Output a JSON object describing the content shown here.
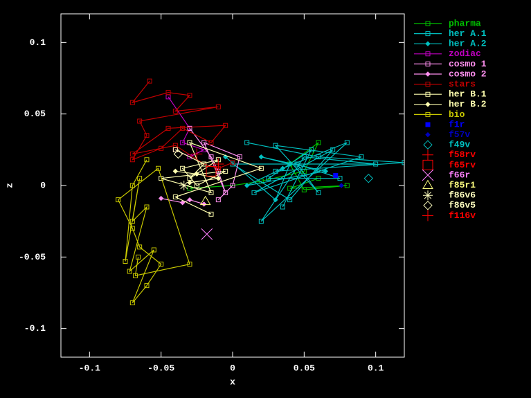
{
  "chart_data": {
    "type": "line",
    "xlabel": "x",
    "ylabel": "z",
    "xlim": [
      -0.12,
      0.12
    ],
    "ylim": [
      -0.12,
      0.12
    ],
    "xticks": [
      -0.1,
      -0.05,
      0,
      0.05,
      0.1
    ],
    "yticks": [
      0.1,
      0.05,
      0,
      -0.05,
      -0.1
    ],
    "legend": "right",
    "series": [
      {
        "name": "pharma",
        "color": "#00c000",
        "marker": "square",
        "lines": true,
        "x": [
          -0.03,
          0.0,
          0.02,
          0.05,
          0.06,
          0.04,
          0.05,
          0.08,
          0.04,
          0.06
        ],
        "values": [
          -0.002,
          0.0,
          0.003,
          0.01,
          0.03,
          0.015,
          -0.003,
          0.0,
          -0.002,
          0.005
        ]
      },
      {
        "name": "her A.1",
        "color": "#00c0c0",
        "marker": "square",
        "lines": true,
        "x": [
          0.01,
          0.06,
          0.12,
          0.03,
          0.08,
          0.02,
          0.05,
          0.1,
          0.0,
          0.04,
          0.07,
          0.015,
          0.09,
          0.03,
          0.06,
          0.045,
          0.075,
          0.025,
          0.055,
          0.035
        ],
        "values": [
          0.03,
          0.02,
          0.016,
          0.01,
          0.03,
          -0.025,
          0.02,
          0.015,
          0.015,
          -0.01,
          0.025,
          -0.005,
          0.02,
          0.028,
          -0.005,
          0.015,
          0.005,
          0.005,
          0.025,
          -0.015
        ]
      },
      {
        "name": "her A.2",
        "color": "#00c0c0",
        "marker": "diamond",
        "lines": true,
        "x": [
          -0.005,
          0.03,
          0.04,
          0.02,
          0.065,
          0.01,
          0.035
        ],
        "values": [
          0.02,
          -0.01,
          0.015,
          0.02,
          0.01,
          0.0,
          0.012
        ]
      },
      {
        "name": "zodiac",
        "color": "#c000c0",
        "marker": "square",
        "lines": true,
        "x": [
          -0.045,
          -0.03,
          -0.035,
          -0.02,
          -0.03,
          -0.04
        ],
        "values": [
          0.062,
          0.04,
          0.03,
          0.025,
          0.02,
          0.025
        ]
      },
      {
        "name": "cosmo 1",
        "color": "#ff90f0",
        "marker": "square",
        "lines": true,
        "x": [
          -0.03,
          -0.015,
          -0.01,
          -0.005,
          -0.02,
          0.005,
          0.0,
          -0.01
        ],
        "values": [
          0.04,
          0.02,
          0.01,
          -0.005,
          0.03,
          0.02,
          0.0,
          -0.01
        ]
      },
      {
        "name": "cosmo 2",
        "color": "#ff90f0",
        "marker": "diamond",
        "lines": true,
        "x": [
          -0.05,
          -0.035,
          -0.03,
          -0.02
        ],
        "values": [
          -0.009,
          -0.012,
          -0.01,
          -0.013
        ]
      },
      {
        "name": "stars",
        "color": "#c00000",
        "marker": "square",
        "lines": true,
        "x": [
          -0.058,
          -0.07,
          -0.045,
          -0.03,
          -0.04,
          -0.01,
          -0.065,
          -0.06,
          -0.07,
          -0.05,
          -0.035,
          -0.015,
          -0.005,
          -0.045,
          -0.07,
          -0.04,
          -0.02,
          -0.01,
          0.0
        ],
        "values": [
          0.073,
          0.058,
          0.065,
          0.063,
          0.052,
          0.055,
          0.045,
          0.035,
          0.018,
          0.026,
          0.04,
          0.03,
          0.042,
          0.04,
          0.022,
          0.028,
          0.015,
          0.012,
          0.016
        ]
      },
      {
        "name": "her B.1",
        "color": "#ffffb0",
        "marker": "square",
        "lines": true,
        "x": [
          -0.04,
          -0.02,
          -0.03,
          -0.01,
          -0.035,
          -0.025,
          -0.005,
          -0.05,
          -0.015,
          -0.03,
          0.02,
          -0.04,
          -0.015
        ],
        "values": [
          0.025,
          0.015,
          0.005,
          0.018,
          0.012,
          0.0,
          0.01,
          0.005,
          -0.005,
          0.03,
          0.012,
          -0.008,
          -0.02
        ]
      },
      {
        "name": "her B.2",
        "color": "#ffffb0",
        "marker": "diamond",
        "lines": true,
        "x": [
          -0.04,
          -0.025,
          -0.01,
          -0.03
        ],
        "values": [
          0.01,
          0.008,
          0.005,
          0.002
        ]
      },
      {
        "name": "bio",
        "color": "#c8c800",
        "marker": "square",
        "lines": true,
        "x": [
          -0.06,
          -0.07,
          -0.075,
          -0.065,
          -0.07,
          -0.06,
          -0.072,
          -0.055,
          -0.07,
          -0.06,
          -0.05,
          -0.065,
          -0.07,
          -0.08,
          -0.052,
          -0.03,
          -0.068,
          -0.066
        ],
        "values": [
          0.018,
          0.0,
          -0.053,
          0.005,
          -0.025,
          -0.015,
          -0.06,
          -0.045,
          -0.082,
          -0.07,
          -0.055,
          -0.043,
          -0.03,
          -0.01,
          0.012,
          -0.055,
          -0.063,
          -0.05
        ]
      },
      {
        "name": "f1r",
        "color": "#0000ff",
        "marker": "box",
        "lines": false,
        "x": [
          0.072
        ],
        "values": [
          0.007
        ]
      },
      {
        "name": "f57v",
        "color": "#0000c0",
        "marker": "diamond",
        "lines": false,
        "x": [
          0.076
        ],
        "values": [
          0.0
        ]
      },
      {
        "name": "f49v",
        "color": "#00c0c0",
        "marker": "bigdiamond",
        "lines": false,
        "x": [
          0.095
        ],
        "values": [
          0.005
        ]
      },
      {
        "name": "f58rv",
        "color": "#ff0000",
        "marker": "plus",
        "lines": false,
        "x": [
          -0.025
        ],
        "values": [
          0.022
        ]
      },
      {
        "name": "f65rv",
        "color": "#ff0000",
        "marker": "bigbox",
        "lines": false,
        "x": [
          -0.015
        ],
        "values": [
          0.01
        ]
      },
      {
        "name": "f66r",
        "color": "#ff80ff",
        "marker": "cross",
        "lines": false,
        "x": [
          -0.018
        ],
        "values": [
          -0.034
        ]
      },
      {
        "name": "f85r1",
        "color": "#ffff80",
        "marker": "triangle",
        "lines": false,
        "x": [
          -0.019
        ],
        "values": [
          -0.011
        ]
      },
      {
        "name": "f86v6",
        "color": "#ffffc0",
        "marker": "star",
        "lines": false,
        "x": [
          -0.034
        ],
        "values": [
          0.0
        ]
      },
      {
        "name": "f86v5",
        "color": "#ffffc0",
        "marker": "bigdiamond",
        "lines": false,
        "x": [
          -0.038
        ],
        "values": [
          0.022
        ]
      },
      {
        "name": "f116v",
        "color": "#ff0000",
        "marker": "plus",
        "lines": false,
        "x": [
          -0.01
        ],
        "values": [
          0.015
        ]
      }
    ]
  }
}
